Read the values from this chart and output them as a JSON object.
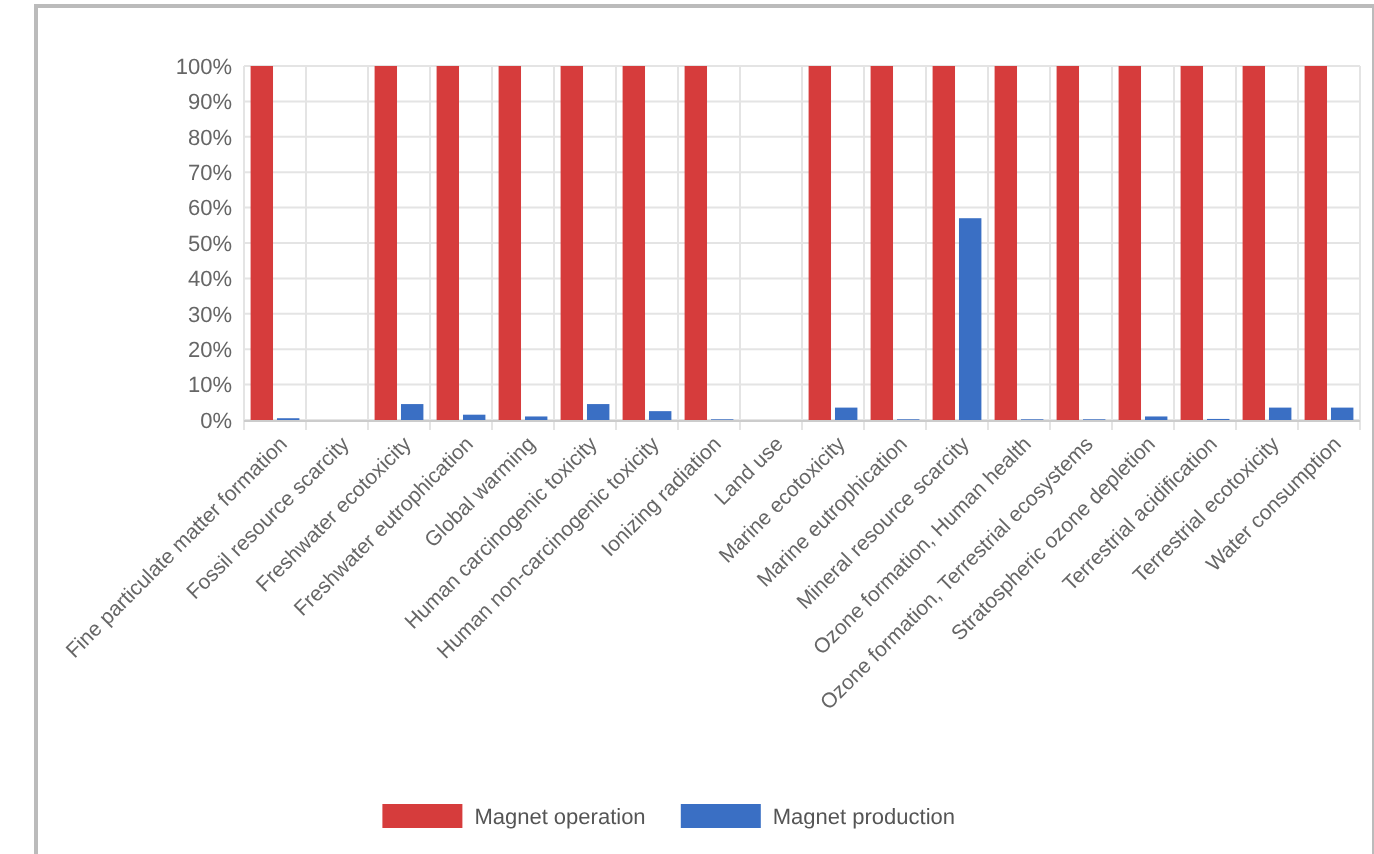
{
  "chart_data": {
    "type": "bar",
    "categories": [
      "Fine particulate matter formation",
      "Fossil resource scarcity",
      "Freshwater ecotoxicity",
      "Freshwater eutrophication",
      "Global warming",
      "Human carcinogenic toxicity",
      "Human non-carcinogenic toxicity",
      "Ionizing radiation",
      "Land use",
      "Marine ecotoxicity",
      "Marine eutrophication",
      "Mineral resource scarcity",
      "Ozone formation, Human health",
      "Ozone formation, Terrestrial ecosystems",
      "Stratospheric ozone depletion",
      "Terrestrial acidification",
      "Terrestrial ecotoxicity",
      "Water consumption"
    ],
    "series": [
      {
        "name": "Magnet operation",
        "color": "#d63c3c",
        "values": [
          100,
          0,
          100,
          100,
          100,
          100,
          100,
          100,
          0,
          100,
          100,
          100,
          100,
          100,
          100,
          100,
          100,
          100
        ]
      },
      {
        "name": "Magnet production",
        "color": "#3a6fc4",
        "values": [
          0.5,
          0,
          4.5,
          1.5,
          1,
          4.5,
          2.5,
          0.2,
          0,
          3.5,
          0.2,
          57,
          0.2,
          0.2,
          1,
          0.3,
          3.5,
          3.5
        ]
      }
    ],
    "ylim": [
      0,
      100
    ],
    "yticks": [
      {
        "value": 0,
        "label": "0%"
      },
      {
        "value": 10,
        "label": "10%"
      },
      {
        "value": 20,
        "label": "20%"
      },
      {
        "value": 30,
        "label": "30%"
      },
      {
        "value": 40,
        "label": "40%"
      },
      {
        "value": 50,
        "label": "50%"
      },
      {
        "value": 60,
        "label": "60%"
      },
      {
        "value": 70,
        "label": "70%"
      },
      {
        "value": 80,
        "label": "80%"
      },
      {
        "value": 90,
        "label": "90%"
      },
      {
        "value": 100,
        "label": "100%"
      }
    ],
    "grid": true,
    "legend": "bottom"
  }
}
